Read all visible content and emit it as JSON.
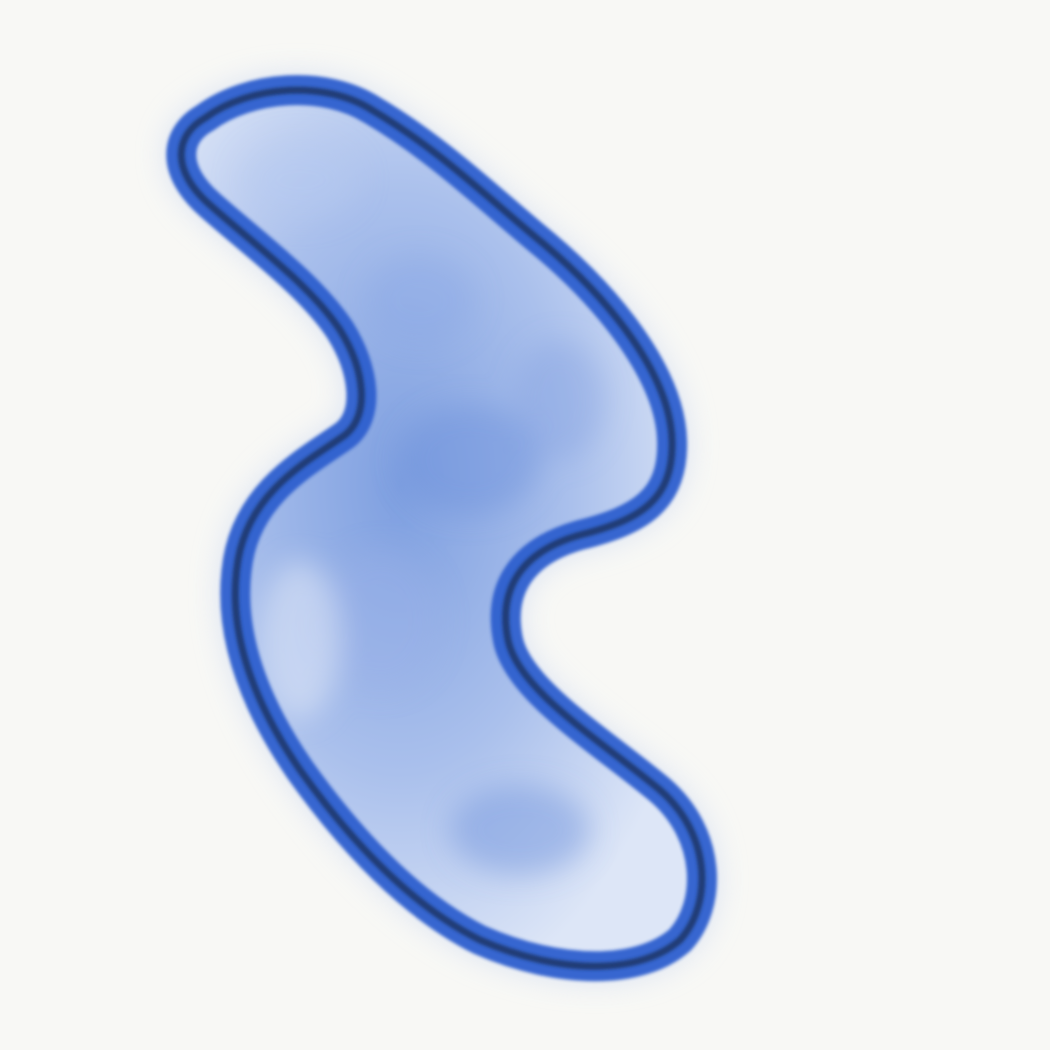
{
  "canvas": {
    "background": "#f8f8f5"
  },
  "shape": {
    "kind": "painted-blob",
    "fill_colors": [
      "#dce6f6",
      "#9fb8ea",
      "#6b91dc"
    ],
    "outer_stroke": "#2f5fce",
    "inner_stroke": "#1b3566",
    "halo": "#c6d4f3"
  }
}
